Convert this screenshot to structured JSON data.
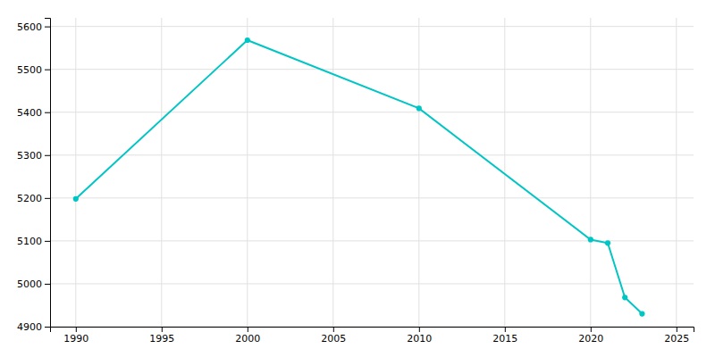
{
  "chart_data": {
    "type": "line",
    "x": [
      1990,
      2000,
      2010,
      2020,
      2021,
      2022,
      2023
    ],
    "values": [
      5198,
      5568,
      5409,
      5103,
      5095,
      4968,
      4930
    ],
    "color": "#00C5C5",
    "marker": "circle",
    "xlim": [
      1988.5,
      2026
    ],
    "ylim": [
      4900,
      5620
    ],
    "xticks": [
      1990,
      1995,
      2000,
      2005,
      2010,
      2015,
      2020,
      2025
    ],
    "yticks": [
      4900,
      5000,
      5100,
      5200,
      5300,
      5400,
      5500,
      5600
    ],
    "grid": true
  }
}
